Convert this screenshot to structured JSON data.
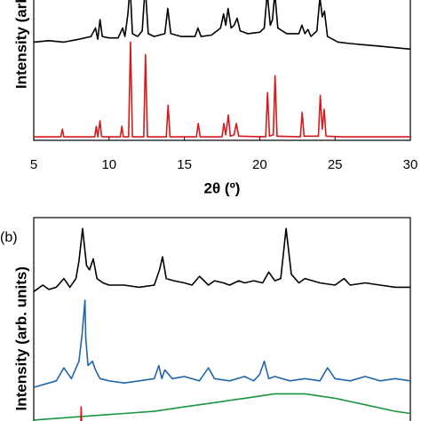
{
  "chart_data": [
    {
      "type": "line",
      "xlabel": "2θ (º)",
      "ylabel": "Intensity (arb. units)",
      "xlim": [
        5,
        30
      ],
      "xticks": [
        5,
        10,
        15,
        20,
        25,
        30
      ],
      "ylim": [
        0,
        100
      ],
      "series": [
        {
          "color": "#000000",
          "x": [
            5,
            6,
            7,
            8,
            8.8,
            9.1,
            9.25,
            9.4,
            9.55,
            10,
            10.6,
            10.9,
            11.05,
            11.25,
            11.4,
            11.55,
            11.9,
            12.2,
            12.4,
            12.6,
            13,
            13.7,
            13.9,
            14.1,
            14.8,
            15.7,
            15.9,
            16.1,
            16.8,
            17.4,
            17.6,
            17.75,
            17.9,
            18.1,
            18.3,
            18.5,
            18.7,
            19.2,
            20,
            20.3,
            20.5,
            20.7,
            20.85,
            21.0,
            21.2,
            21.8,
            22.6,
            22.8,
            23.0,
            23.2,
            23.4,
            23.8,
            24.0,
            24.15,
            24.3,
            24.5,
            25.2,
            26,
            27,
            28,
            29,
            30
          ],
          "values": [
            70,
            71,
            70,
            72,
            74,
            80,
            72,
            86,
            74,
            73,
            73,
            80,
            74,
            90,
            110,
            76,
            74,
            78,
            110,
            76,
            74,
            76,
            94,
            76,
            74,
            74,
            80,
            74,
            75,
            80,
            90,
            82,
            94,
            80,
            82,
            87,
            78,
            76,
            77,
            80,
            105,
            82,
            86,
            105,
            80,
            76,
            76,
            82,
            76,
            79,
            74,
            78,
            102,
            88,
            92,
            74,
            70,
            69,
            68,
            67,
            66,
            65
          ]
        },
        {
          "color": "#d7191c",
          "x": [
            5,
            6.8,
            6.9,
            7.0,
            9.05,
            9.15,
            9.25,
            9.4,
            9.5,
            9.6,
            10.75,
            10.85,
            10.95,
            11.3,
            11.42,
            11.55,
            12.3,
            12.42,
            12.55,
            13.8,
            13.92,
            14.05,
            15.8,
            15.92,
            16.05,
            17.5,
            17.62,
            17.75,
            17.92,
            18.05,
            18.3,
            18.45,
            18.6,
            20.4,
            20.52,
            20.65,
            20.9,
            21.02,
            21.15,
            22.7,
            22.82,
            22.95,
            23.9,
            24.02,
            24.15,
            24.28,
            24.4,
            25.5,
            30
          ],
          "values": [
            2.5,
            2.5,
            8,
            2.5,
            2.5,
            10,
            2.5,
            14,
            3,
            2.5,
            2.5,
            10,
            2.5,
            2.5,
            70,
            2.5,
            2.5,
            61,
            2.5,
            2.5,
            25,
            2.5,
            2.5,
            12,
            2.5,
            2.5,
            12,
            4,
            18,
            3,
            4,
            12,
            3,
            2.5,
            34,
            3,
            4,
            46,
            3,
            2.5,
            20,
            3,
            3,
            32,
            8,
            22,
            3,
            2.5,
            2.5
          ]
        }
      ]
    },
    {
      "type": "line",
      "panel_label": "(b)",
      "ylabel": "Intensity (arb. units)",
      "xlim": [
        5,
        30
      ],
      "ylim": [
        0,
        100
      ],
      "series": [
        {
          "color": "#000000",
          "x": [
            5,
            5.6,
            6,
            6.5,
            7.0,
            7.4,
            7.8,
            8.0,
            8.24,
            8.5,
            8.7,
            8.95,
            9.2,
            9.6,
            10,
            11,
            12,
            13,
            13.35,
            13.55,
            13.8,
            14.3,
            15,
            15.5,
            16,
            16.6,
            17,
            17.6,
            18,
            18.6,
            19,
            19.6,
            20.2,
            20.6,
            21,
            21.4,
            21.75,
            22.1,
            22.6,
            23,
            24,
            25,
            25.6,
            26,
            27,
            28,
            29,
            30
          ],
          "values": [
            66,
            69,
            67,
            68,
            72,
            68,
            72,
            80,
            95,
            78,
            76,
            81,
            72,
            70,
            69,
            69,
            68,
            69,
            76,
            82,
            72,
            71,
            70,
            69,
            73,
            69,
            71,
            70,
            69,
            71,
            70,
            71,
            70,
            75,
            71,
            72,
            95,
            74,
            70,
            72,
            70,
            69,
            72,
            69,
            70,
            69,
            68,
            68
          ]
        },
        {
          "color": "#2166ac",
          "x": [
            5,
            6,
            6.5,
            7.0,
            7.5,
            8.0,
            8.2,
            8.4,
            8.45,
            8.6,
            8.9,
            9.1,
            9.4,
            10,
            11,
            12,
            13,
            13.3,
            13.5,
            13.7,
            14.2,
            15,
            16,
            16.6,
            17,
            18,
            19,
            19.6,
            20,
            20.3,
            20.6,
            21,
            22,
            23,
            24,
            24.5,
            25,
            26,
            27,
            28,
            29,
            30
          ],
          "values": [
            22,
            24,
            25,
            31,
            26,
            34,
            46,
            62,
            45,
            32,
            34,
            30,
            26,
            25,
            24,
            25,
            26,
            32,
            26,
            30,
            26,
            27,
            25,
            31,
            26,
            25,
            27,
            25,
            28,
            34,
            26,
            27,
            25,
            26,
            25,
            31,
            26,
            25,
            27,
            25,
            26,
            25
          ]
        },
        {
          "color": "#1a9641",
          "x": [
            5,
            7,
            9,
            11,
            13,
            15,
            17,
            19,
            21,
            23,
            25,
            27,
            29,
            30
          ],
          "values": [
            7,
            8,
            9,
            10,
            11,
            13,
            15,
            17,
            19,
            19,
            17,
            14,
            11,
            10
          ]
        },
        {
          "color": "#d7191c",
          "x": [
            5,
            8.1,
            8.15,
            8.2,
            30
          ],
          "values": [
            0,
            0,
            13,
            0,
            0
          ]
        }
      ]
    }
  ]
}
